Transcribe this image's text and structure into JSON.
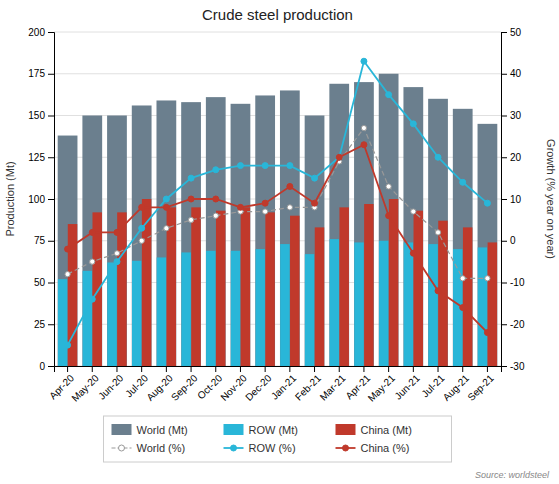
{
  "chart_data": {
    "type": "bar",
    "title": "Crude steel production",
    "categories": [
      "Apr-20",
      "May-20",
      "Jun-20",
      "Jul-20",
      "Aug-20",
      "Sep-20",
      "Oct-20",
      "Nov-20",
      "Dec-20",
      "Jan-21",
      "Feb-21",
      "Mar-21",
      "Apr-21",
      "May-21",
      "Jun-21",
      "Jul-21",
      "Aug-21",
      "Sep-21"
    ],
    "series": [
      {
        "name": "World (Mt)",
        "type": "bar",
        "color": "#6b7f8e",
        "values": [
          138,
          150,
          150,
          156,
          159,
          158,
          161,
          157,
          162,
          165,
          150,
          169,
          170,
          175,
          167,
          160,
          154,
          145
        ]
      },
      {
        "name": "ROW (Mt)",
        "type": "bar",
        "color": "#29b6d8",
        "values": [
          52,
          57,
          62,
          63,
          65,
          68,
          69,
          69,
          70,
          73,
          67,
          76,
          74,
          75,
          74,
          73,
          70,
          71
        ]
      },
      {
        "name": "China (Mt)",
        "type": "bar",
        "color": "#c0392b",
        "values": [
          85,
          92,
          92,
          100,
          95,
          95,
          93,
          95,
          92,
          90,
          83,
          95,
          97,
          100,
          93,
          87,
          83,
          74
        ]
      },
      {
        "name": "World (%)",
        "type": "line",
        "axis": "y2",
        "color": "#999999",
        "line_style": "dashed",
        "marker": "circle",
        "values": [
          -8,
          -5,
          -3,
          0,
          3,
          5,
          6,
          7,
          7,
          8,
          8,
          19,
          27,
          13,
          7,
          2,
          -9,
          -9
        ]
      },
      {
        "name": "ROW (%)",
        "type": "line",
        "axis": "y2",
        "color": "#29b6d8",
        "line_style": "solid",
        "marker": "circle",
        "values": [
          -25,
          -14,
          -5,
          3,
          10,
          15,
          17,
          18,
          18,
          18,
          15,
          20,
          43,
          35,
          28,
          20,
          14,
          9
        ]
      },
      {
        "name": "China (%)",
        "type": "line",
        "axis": "y2",
        "color": "#c0392b",
        "line_style": "solid",
        "marker": "circle",
        "values": [
          -2,
          2,
          2,
          8,
          8,
          10,
          10,
          8,
          9,
          13,
          9,
          20,
          23,
          6,
          -3,
          -12,
          -16,
          -22
        ]
      }
    ],
    "ylabel": "Production (Mt)",
    "y2label": "Growth (% year on year)",
    "ylim": [
      0,
      200
    ],
    "yticks": [
      0,
      25,
      50,
      75,
      100,
      125,
      150,
      175,
      200
    ],
    "y2lim": [
      -30,
      50
    ],
    "y2ticks": [
      -30,
      -20,
      -10,
      0,
      10,
      20,
      30,
      40,
      50
    ],
    "grid": true,
    "legend": "bottom",
    "source": "Source: worldsteel"
  }
}
